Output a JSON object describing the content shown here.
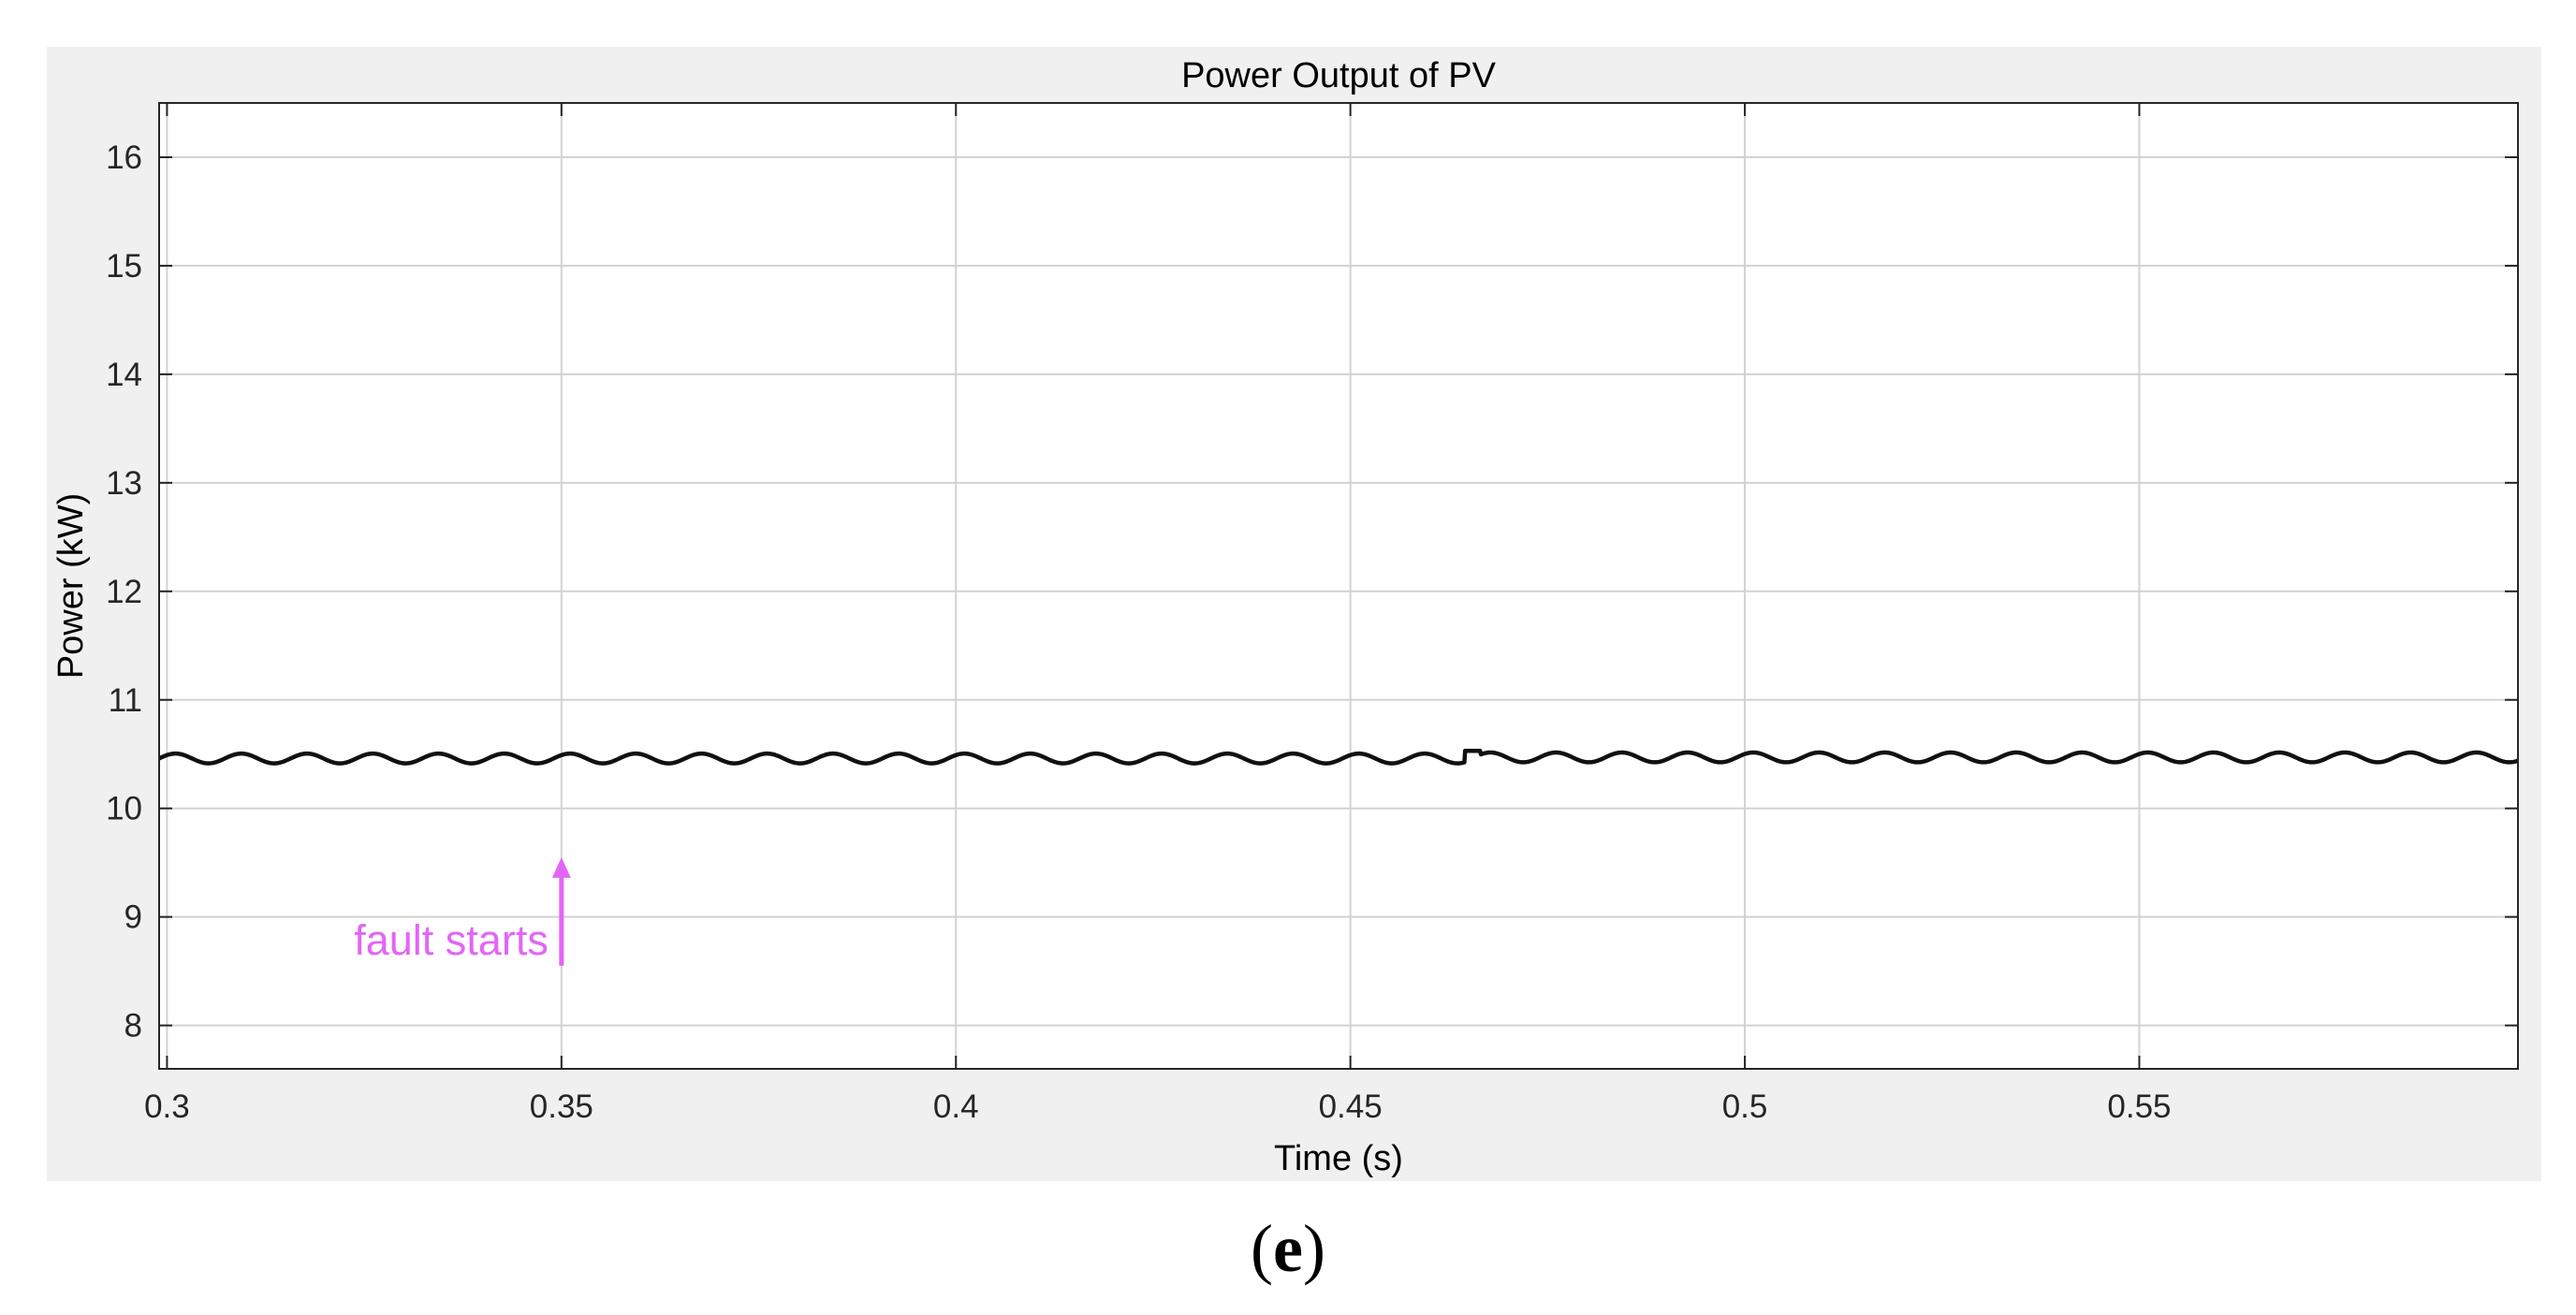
{
  "chart_data": {
    "type": "line",
    "title": "Power Output of PV",
    "xlabel": "Time (s)",
    "ylabel": "Power (kW)",
    "xlim": [
      0.299,
      0.598
    ],
    "ylim": [
      7.6,
      16.5
    ],
    "xticks": [
      0.3,
      0.35,
      0.4,
      0.45,
      0.5,
      0.55
    ],
    "xtick_labels": [
      "0.3",
      "0.35",
      "0.4",
      "0.45",
      "0.5",
      "0.55"
    ],
    "yticks": [
      8,
      9,
      10,
      11,
      12,
      13,
      14,
      15,
      16
    ],
    "ytick_labels": [
      "8",
      "9",
      "10",
      "11",
      "12",
      "13",
      "14",
      "15",
      "16"
    ],
    "grid": true,
    "series": [
      {
        "color": "#111111",
        "mean_before_fault": 10.46,
        "mean_after_fault": 10.47,
        "ripple_amplitude": 0.045,
        "ripple_period_s": 0.008333,
        "step_time_s": 0.4655,
        "step_value": 10.53,
        "x_start": 0.299,
        "x_end": 0.598
      }
    ],
    "annotations": [
      {
        "text": "fault starts",
        "x": 0.35,
        "y_from": 8.55,
        "y_to": 9.55,
        "color": "#e266f5"
      }
    ]
  },
  "caption": {
    "open": "(",
    "letter": "e",
    "close": ")"
  },
  "colors": {
    "figure_background": "#f0f0f0",
    "axes_background": "#ffffff",
    "grid": "#d2d2d2",
    "axes_border": "#262626",
    "line": "#111111",
    "annotation": "#e266f5"
  }
}
